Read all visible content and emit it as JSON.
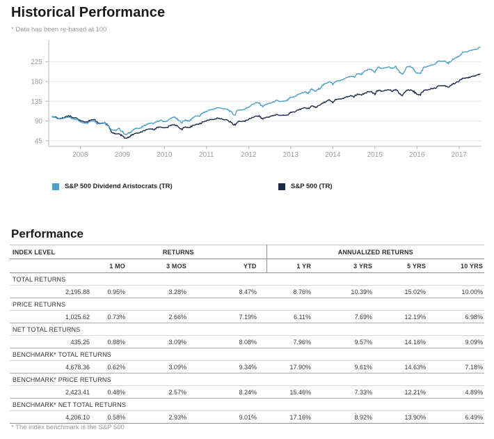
{
  "header": {
    "title": "Historical Performance",
    "note": "* Data has been re-based at 100"
  },
  "chart_data": {
    "type": "line",
    "title": "Historical Performance",
    "note": "Data has been re-based at 100",
    "x_unit": "monthly",
    "x_start": "2007-05",
    "x_end": "2017-07",
    "x_tick_labels": [
      "2008",
      "2009",
      "2010",
      "2011",
      "2012",
      "2013",
      "2014",
      "2015",
      "2016",
      "2017"
    ],
    "y_ticks": [
      45,
      90,
      135,
      180,
      225
    ],
    "ylim": [
      30,
      270
    ],
    "grid": "horizontal",
    "legend_position": "bottom",
    "axis_color": "#b8b8b8",
    "grid_color": "#e9e9e9",
    "tick_label_color": "#9b9b9b",
    "series": [
      {
        "name": "S&P 500 Dividend Aristocrats (TR)",
        "color": "#4E9FCA",
        "values": [
          100.0,
          97.8,
          94.3,
          95.2,
          98.2,
          99.2,
          94.4,
          93.2,
          87.9,
          85.4,
          85.3,
          89.7,
          91.1,
          83.8,
          84.1,
          86.6,
          79.8,
          70.1,
          68.3,
          72.5,
          66.0,
          58.5,
          63.3,
          69.4,
          73.1,
          73.2,
          78.9,
          82.2,
          85.3,
          84.0,
          89.4,
          91.3,
          88.3,
          91.2,
          97.0,
          98.9,
          91.1,
          86.6,
          93.0,
          89.0,
          97.2,
          101.3,
          101.5,
          108.6,
          111.6,
          115.8,
          116.4,
          120.5,
          119.5,
          117.9,
          116.2,
          110.4,
          103.2,
          115.0,
          115.2,
          117.1,
          122.3,
          127.5,
          131.7,
          131.0,
          123.0,
          128.1,
          130.1,
          133.0,
          136.6,
          134.4,
          135.0,
          136.4,
          143.4,
          145.1,
          150.3,
          153.1,
          156.4,
          154.1,
          162.2,
          157.4,
          162.7,
          170.4,
          175.7,
          180.4,
          173.8,
          181.0,
          182.3,
          184.4,
          189.3,
          191.8,
          189.9,
          198.1,
          196.1,
          201.7,
          207.9,
          208.0,
          201.6,
          213.0,
          209.2,
          211.2,
          213.4,
          209.0,
          213.8,
          200.8,
          196.2,
          213.1,
          213.7,
          209.1,
          199.1,
          198.9,
          212.7,
          213.9,
          218.0,
          218.5,
          226.3,
          226.3,
          225.9,
          221.6,
          229.5,
          233.6,
          238.1,
          246.9,
          247.0,
          249.3,
          252.5,
          253.5,
          258.7
        ]
      },
      {
        "name": "S&P 500 (TR)",
        "color": "#1A2A4D",
        "values": [
          100.0,
          98.4,
          95.4,
          96.8,
          100.5,
          102.1,
          97.8,
          97.1,
          91.3,
          88.3,
          87.9,
          92.2,
          93.3,
          85.5,
          84.7,
          86.0,
          78.2,
          65.1,
          60.3,
          60.9,
          55.8,
          49.7,
          54.1,
          59.3,
          62.5,
          62.6,
          67.3,
          69.8,
          72.3,
          71.0,
          75.3,
          76.7,
          74.0,
          76.2,
          80.8,
          82.2,
          75.5,
          71.6,
          76.7,
          73.1,
          79.7,
          82.8,
          82.7,
          88.3,
          90.4,
          93.4,
          93.5,
          96.4,
          95.2,
          93.6,
          91.7,
          86.7,
          80.6,
          89.4,
          89.1,
          90.1,
          94.1,
          98.1,
          101.3,
          100.8,
          94.6,
          98.5,
          99.9,
          102.1,
          104.7,
          102.8,
          103.2,
          104.1,
          109.6,
          111.0,
          115.2,
          117.5,
          120.1,
          118.5,
          124.6,
          120.8,
          124.7,
          130.4,
          134.3,
          137.7,
          133.0,
          138.9,
          140.2,
          141.3,
          144.5,
          147.5,
          145.5,
          151.2,
          149.1,
          152.8,
          156.9,
          156.4,
          151.8,
          160.5,
          157.9,
          159.6,
          161.4,
          158.3,
          161.7,
          151.8,
          148.1,
          160.6,
          160.9,
          158.4,
          150.6,
          150.2,
          160.4,
          161.1,
          163.9,
          164.3,
          170.4,
          170.5,
          170.5,
          167.5,
          173.6,
          177.0,
          180.5,
          187.5,
          187.7,
          189.7,
          192.3,
          193.4,
          197.5
        ]
      }
    ]
  },
  "performance": {
    "title": "Performance",
    "group_headers": [
      "INDEX LEVEL",
      "RETURNS",
      "ANNUALIZED RETURNS"
    ],
    "col_headers": [
      "1 MO",
      "3 MOS",
      "YTD",
      "1 YR",
      "3 YRS",
      "5 YRS",
      "10 YRS"
    ],
    "rows": [
      {
        "label": "TOTAL RETURNS",
        "index_level": "2,195.88",
        "values": [
          "0.95%",
          "3.28%",
          "8.47%",
          "8.76%",
          "10.39%",
          "15.02%",
          "10.00%"
        ]
      },
      {
        "label": "PRICE RETURNS",
        "index_level": "1,025.62",
        "values": [
          "0.73%",
          "2.66%",
          "7.19%",
          "6.11%",
          "7.69%",
          "12.19%",
          "6.98%"
        ]
      },
      {
        "label": "NET TOTAL RETURNS",
        "index_level": "435.25",
        "values": [
          "0.88%",
          "3.09%",
          "8.08%",
          "7.96%",
          "9.57%",
          "14.16%",
          "9.09%"
        ]
      },
      {
        "label": "BENCHMARK* TOTAL RETURNS",
        "index_level": "4,678.36",
        "values": [
          "0.62%",
          "3.09%",
          "9.34%",
          "17.90%",
          "9.61%",
          "14.63%",
          "7.18%"
        ]
      },
      {
        "label": "BENCHMARK* PRICE RETURNS",
        "index_level": "2,423.41",
        "values": [
          "0.48%",
          "2.57%",
          "8.24%",
          "15.46%",
          "7.33%",
          "12.21%",
          "4.89%"
        ]
      },
      {
        "label": "BENCHMARK* NET TOTAL RETURNS",
        "index_level": "4,206.10",
        "values": [
          "0.58%",
          "2.93%",
          "9.01%",
          "17.16%",
          "8.92%",
          "13.90%",
          "6.49%"
        ]
      }
    ],
    "footnote": "* The index benchmark is the S&P 500"
  }
}
